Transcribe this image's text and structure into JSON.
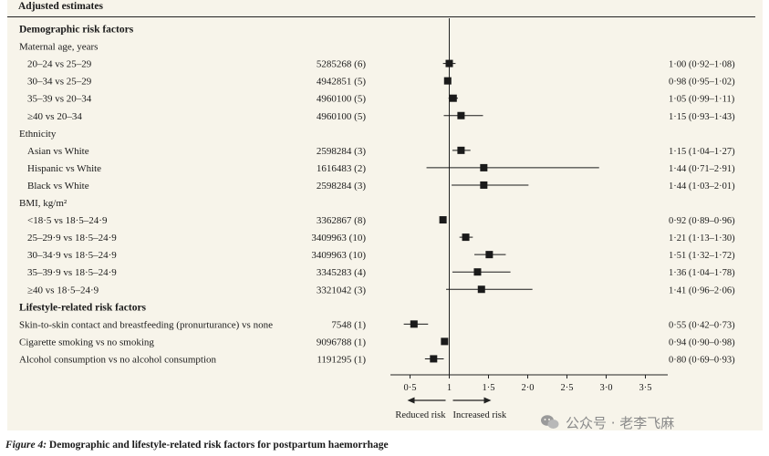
{
  "header": {
    "title": "Adjusted estimates"
  },
  "caption": {
    "label": "Figure 4:",
    "text": " Demographic and lifestyle-related risk factors for postpartum haemorrhage"
  },
  "watermark": {
    "text": "公众号 · 老李飞麻",
    "icon": "wechat-icon"
  },
  "colors": {
    "panel": "#f7f4ea",
    "text": "#1a1a1a",
    "marker": "#1a1a1a"
  },
  "chart_data": {
    "type": "forest",
    "xticks": [
      0.5,
      1,
      1.5,
      2.0,
      2.5,
      3.0,
      3.5
    ],
    "xtick_labels": [
      "0·5",
      "1",
      "1·5",
      "2·0",
      "2·5",
      "3·0",
      "3·5"
    ],
    "xlim": [
      0.25,
      3.5
    ],
    "reference_line": 1,
    "direction_labels": {
      "left": "Reduced risk",
      "right": "Increased risk"
    },
    "rows": [
      {
        "kind": "section",
        "label": "Demographic risk factors"
      },
      {
        "kind": "group",
        "label": "Maternal age, years"
      },
      {
        "kind": "item",
        "indent": true,
        "label": "20–24 vs 25–29",
        "n": "5285268 (6)",
        "estimate": 1.0,
        "low": 0.92,
        "high": 1.08,
        "ci_text": "1·00 (0·92–1·08)"
      },
      {
        "kind": "item",
        "indent": true,
        "label": "30–34 vs 25–29",
        "n": "4942851 (5)",
        "estimate": 0.98,
        "low": 0.95,
        "high": 1.02,
        "ci_text": "0·98 (0·95–1·02)"
      },
      {
        "kind": "item",
        "indent": true,
        "label": "35–39 vs 20–34",
        "n": "4960100 (5)",
        "estimate": 1.05,
        "low": 0.99,
        "high": 1.11,
        "ci_text": "1·05 (0·99–1·11)"
      },
      {
        "kind": "item",
        "indent": true,
        "label": "≥40 vs 20–34",
        "n": "4960100 (5)",
        "estimate": 1.15,
        "low": 0.93,
        "high": 1.43,
        "ci_text": "1·15 (0·93–1·43)"
      },
      {
        "kind": "group",
        "label": "Ethnicity"
      },
      {
        "kind": "item",
        "indent": true,
        "label": "Asian vs White",
        "n": "2598284 (3)",
        "estimate": 1.15,
        "low": 1.04,
        "high": 1.27,
        "ci_text": "1·15 (1·04–1·27)"
      },
      {
        "kind": "item",
        "indent": true,
        "label": "Hispanic vs White",
        "n": "1616483 (2)",
        "estimate": 1.44,
        "low": 0.71,
        "high": 2.91,
        "ci_text": "1·44 (0·71–2·91)"
      },
      {
        "kind": "item",
        "indent": true,
        "label": "Black vs White",
        "n": "2598284 (3)",
        "estimate": 1.44,
        "low": 1.03,
        "high": 2.01,
        "ci_text": "1·44 (1·03–2·01)"
      },
      {
        "kind": "group",
        "label": "BMI, kg/m²"
      },
      {
        "kind": "item",
        "indent": true,
        "label": "<18·5 vs 18·5–24·9",
        "n": "3362867 (8)",
        "estimate": 0.92,
        "low": 0.89,
        "high": 0.96,
        "ci_text": "0·92 (0·89–0·96)"
      },
      {
        "kind": "item",
        "indent": true,
        "label": "25–29·9 vs 18·5–24·9",
        "n": "3409963 (10)",
        "estimate": 1.21,
        "low": 1.13,
        "high": 1.3,
        "ci_text": "1·21 (1·13–1·30)"
      },
      {
        "kind": "item",
        "indent": true,
        "label": "30–34·9 vs 18·5–24·9",
        "n": "3409963 (10)",
        "estimate": 1.51,
        "low": 1.32,
        "high": 1.72,
        "ci_text": "1·51 (1·32–1·72)"
      },
      {
        "kind": "item",
        "indent": true,
        "label": "35–39·9 vs 18·5–24·9",
        "n": "3345283 (4)",
        "estimate": 1.36,
        "low": 1.04,
        "high": 1.78,
        "ci_text": "1·36 (1·04–1·78)"
      },
      {
        "kind": "item",
        "indent": true,
        "label": "≥40 vs 18·5–24·9",
        "n": "3321042 (3)",
        "estimate": 1.41,
        "low": 0.96,
        "high": 2.06,
        "ci_text": "1·41 (0·96–2·06)"
      },
      {
        "kind": "section",
        "label": "Lifestyle-related risk factors"
      },
      {
        "kind": "item",
        "indent": false,
        "label": "Skin-to-skin contact and breastfeeding (pronurturance) vs none",
        "n": "7548 (1)",
        "estimate": 0.55,
        "low": 0.42,
        "high": 0.73,
        "ci_text": "0·55 (0·42–0·73)"
      },
      {
        "kind": "item",
        "indent": false,
        "label": "Cigarette smoking vs no smoking",
        "n": "9096788 (1)",
        "estimate": 0.94,
        "low": 0.9,
        "high": 0.98,
        "ci_text": "0·94 (0·90–0·98)"
      },
      {
        "kind": "item",
        "indent": false,
        "label": "Alcohol consumption vs no alcohol consumption",
        "n": "1191295 (1)",
        "estimate": 0.8,
        "low": 0.69,
        "high": 0.93,
        "ci_text": "0·80 (0·69–0·93)"
      }
    ]
  }
}
